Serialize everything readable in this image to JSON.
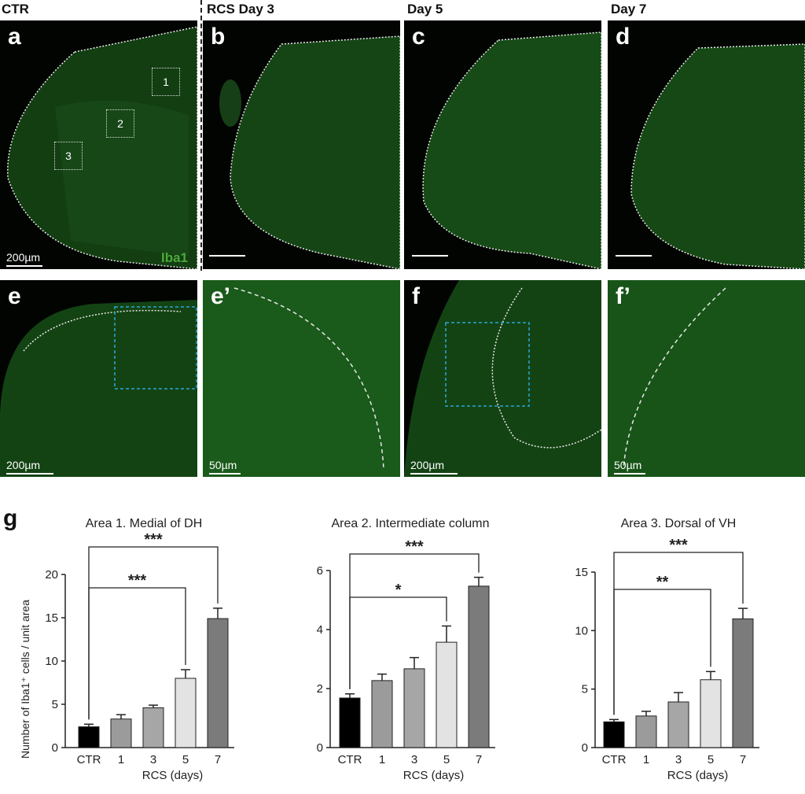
{
  "column_labels": [
    "CTR",
    "RCS Day 3",
    "Day 5",
    "Day 7"
  ],
  "panels": {
    "a": {
      "letter": "a",
      "scale": "200µm",
      "marker": "Iba1",
      "rois": [
        "1",
        "2",
        "3"
      ]
    },
    "b": {
      "letter": "b"
    },
    "c": {
      "letter": "c"
    },
    "d": {
      "letter": "d"
    },
    "e": {
      "letter": "e",
      "scale": "200µm"
    },
    "e2": {
      "letter": "e’",
      "scale": "50µm"
    },
    "f": {
      "letter": "f",
      "scale": "200µm"
    },
    "f2": {
      "letter": "f’",
      "scale": "50µm"
    }
  },
  "figure_g": {
    "letter": "g",
    "ylabel": "Number of Iba1⁺ cells / unit area"
  },
  "chart_data": [
    {
      "type": "bar",
      "title": "Area 1. Medial of DH",
      "xlabel": "RCS (days)",
      "categories": [
        "CTR",
        "1",
        "3",
        "5",
        "7"
      ],
      "values": [
        2.4,
        3.3,
        4.6,
        8.0,
        14.9
      ],
      "errors": [
        0.3,
        0.5,
        0.3,
        1.0,
        1.2
      ],
      "ylim": [
        0,
        20
      ],
      "yticks": [
        "0",
        "5",
        "10",
        "15",
        "20"
      ],
      "bar_colors": [
        "#000000",
        "#9b9b9b",
        "#a6a6a6",
        "#e3e3e3",
        "#7b7b7b"
      ],
      "significance": [
        {
          "from": "CTR",
          "to": "5",
          "label": "***"
        },
        {
          "from": "CTR",
          "to": "7",
          "label": "***"
        }
      ]
    },
    {
      "type": "bar",
      "title": "Area 2. Intermediate column",
      "xlabel": "RCS (days)",
      "categories": [
        "CTR",
        "1",
        "3",
        "5",
        "7"
      ],
      "values": [
        1.68,
        2.27,
        2.67,
        3.57,
        5.47
      ],
      "errors": [
        0.14,
        0.22,
        0.38,
        0.55,
        0.3
      ],
      "ylim": [
        0,
        6
      ],
      "yticks": [
        "0",
        "2",
        "4",
        "6"
      ],
      "bar_colors": [
        "#000000",
        "#9b9b9b",
        "#a6a6a6",
        "#e3e3e3",
        "#7b7b7b"
      ],
      "significance": [
        {
          "from": "CTR",
          "to": "5",
          "label": "*"
        },
        {
          "from": "CTR",
          "to": "7",
          "label": "***"
        }
      ]
    },
    {
      "type": "bar",
      "title": "Area 3. Dorsal of VH",
      "xlabel": "RCS (days)",
      "categories": [
        "CTR",
        "1",
        "3",
        "5",
        "7"
      ],
      "values": [
        2.2,
        2.7,
        3.9,
        5.8,
        11.0
      ],
      "errors": [
        0.2,
        0.4,
        0.8,
        0.7,
        0.9
      ],
      "ylim": [
        0,
        15
      ],
      "yticks": [
        "0",
        "5",
        "10",
        "15"
      ],
      "bar_colors": [
        "#000000",
        "#9b9b9b",
        "#a6a6a6",
        "#e3e3e3",
        "#7b7b7b"
      ],
      "significance": [
        {
          "from": "CTR",
          "to": "5",
          "label": "**"
        },
        {
          "from": "CTR",
          "to": "7",
          "label": "***"
        }
      ]
    }
  ]
}
